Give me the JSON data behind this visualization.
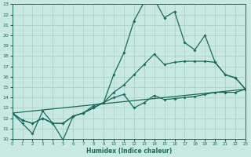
{
  "xlabel": "Humidex (Indice chaleur)",
  "bg_color": "#c8e8e2",
  "line_color": "#1a6b5a",
  "grid_color": "#a8cfc8",
  "xlim": [
    0,
    23
  ],
  "ylim": [
    10,
    23
  ],
  "xticks": [
    0,
    1,
    2,
    3,
    4,
    5,
    6,
    7,
    8,
    9,
    10,
    11,
    12,
    13,
    14,
    15,
    16,
    17,
    18,
    19,
    20,
    21,
    22,
    23
  ],
  "yticks": [
    10,
    11,
    12,
    13,
    14,
    15,
    16,
    17,
    18,
    19,
    20,
    21,
    22,
    23
  ],
  "curve1_x": [
    0,
    1,
    2,
    3,
    4,
    5,
    6,
    7,
    8,
    9,
    10,
    11,
    12,
    13,
    14,
    15,
    16,
    17,
    18,
    19,
    20,
    21,
    22,
    23
  ],
  "curve1_y": [
    12.5,
    11.5,
    10.5,
    12.7,
    11.5,
    9.9,
    12.2,
    12.5,
    13.2,
    13.5,
    16.2,
    18.3,
    21.4,
    23.2,
    23.5,
    21.7,
    22.3,
    19.3,
    18.6,
    20.0,
    17.4,
    16.2,
    15.9,
    14.8
  ],
  "curve2_x": [
    0,
    1,
    2,
    3,
    4,
    5,
    6,
    7,
    8,
    9,
    10,
    11,
    12,
    13,
    14,
    15,
    16,
    17,
    18,
    19,
    20,
    21,
    22,
    23
  ],
  "curve2_y": [
    12.5,
    11.8,
    11.5,
    12.0,
    11.5,
    11.5,
    12.2,
    12.5,
    13.0,
    13.5,
    14.5,
    15.2,
    16.2,
    17.2,
    18.2,
    17.2,
    17.4,
    17.5,
    17.5,
    17.5,
    17.4,
    16.2,
    15.9,
    14.8
  ],
  "curve3_x": [
    0,
    1,
    2,
    3,
    4,
    5,
    6,
    7,
    8,
    9,
    10,
    11,
    12,
    13,
    14,
    15,
    16,
    17,
    18,
    19,
    20,
    21,
    22,
    23
  ],
  "curve3_y": [
    12.5,
    11.8,
    11.5,
    12.0,
    11.5,
    11.5,
    12.2,
    12.5,
    13.0,
    13.5,
    14.0,
    14.3,
    13.0,
    13.5,
    14.2,
    13.8,
    13.9,
    14.0,
    14.1,
    14.3,
    14.5,
    14.5,
    14.5,
    14.8
  ],
  "curve4_x": [
    0,
    23
  ],
  "curve4_y": [
    12.5,
    14.8
  ]
}
